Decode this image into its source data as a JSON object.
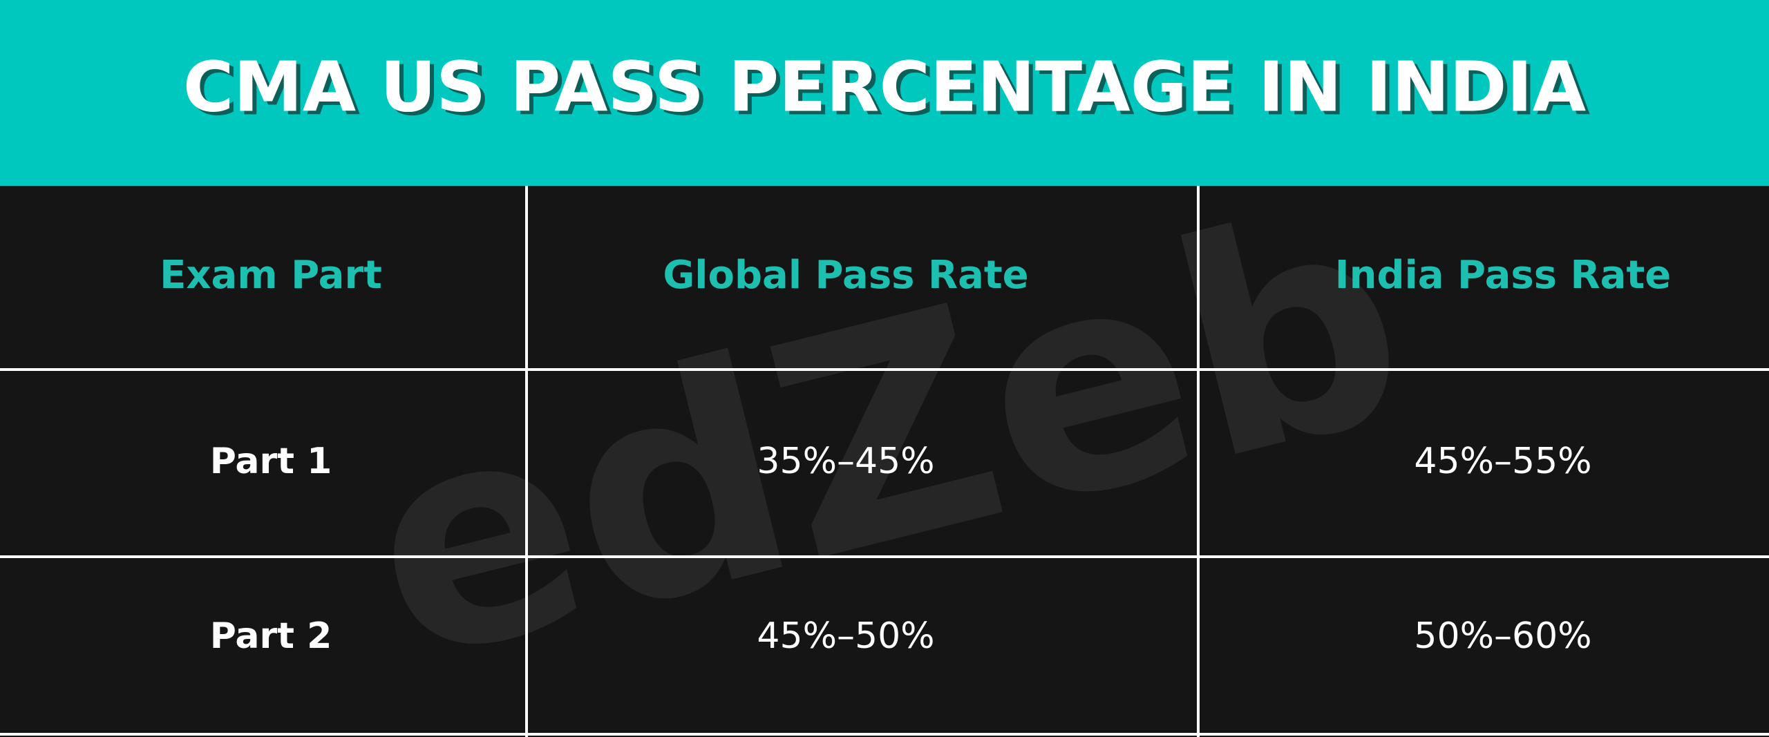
{
  "header": {
    "title": "CMA US PASS PERCENTAGE IN INDIA"
  },
  "watermark": "edZeb",
  "table": {
    "columns": [
      "Exam Part",
      "Global Pass Rate",
      "India Pass Rate"
    ],
    "rows": [
      [
        "Part 1",
        "35%–45%",
        "45%–55%"
      ],
      [
        "Part 2",
        "45%–50%",
        "50%–60%"
      ]
    ]
  }
}
